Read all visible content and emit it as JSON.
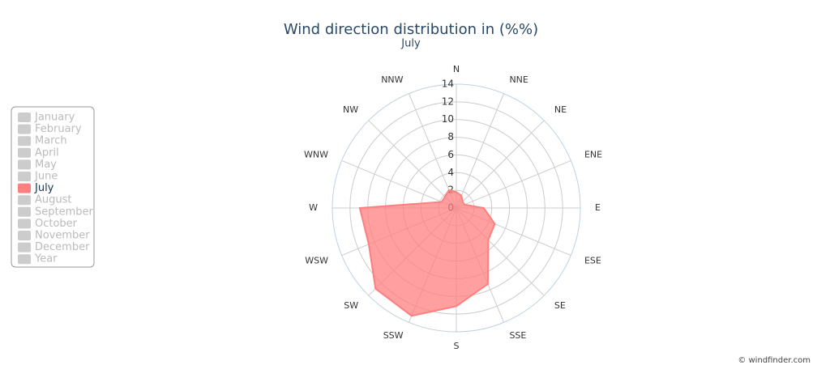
{
  "chart_data": {
    "type": "polar",
    "title": "Wind direction distribution in (%%)",
    "subtitle": "July",
    "categories": [
      "N",
      "NNE",
      "NE",
      "ENE",
      "E",
      "ESE",
      "SE",
      "SSE",
      "S",
      "SSW",
      "SW",
      "WSW",
      "W",
      "WNW",
      "NW",
      "NNW"
    ],
    "series": [
      {
        "name": "July",
        "color": "#ff7f7f",
        "values": [
          1.8,
          1.5,
          1.0,
          1.0,
          3.1,
          4.7,
          5.1,
          9.3,
          11.1,
          13.2,
          12.9,
          10.7,
          10.9,
          1.8,
          1.8,
          2.2
        ]
      }
    ],
    "rlim": [
      0,
      14
    ],
    "rticks": [
      0,
      2,
      4,
      6,
      8,
      10,
      12,
      14
    ],
    "grid": true,
    "legend_entries": [
      "January",
      "February",
      "March",
      "April",
      "May",
      "June",
      "July",
      "August",
      "September",
      "October",
      "November",
      "December",
      "Year"
    ],
    "credit": "© windfinder.com"
  }
}
